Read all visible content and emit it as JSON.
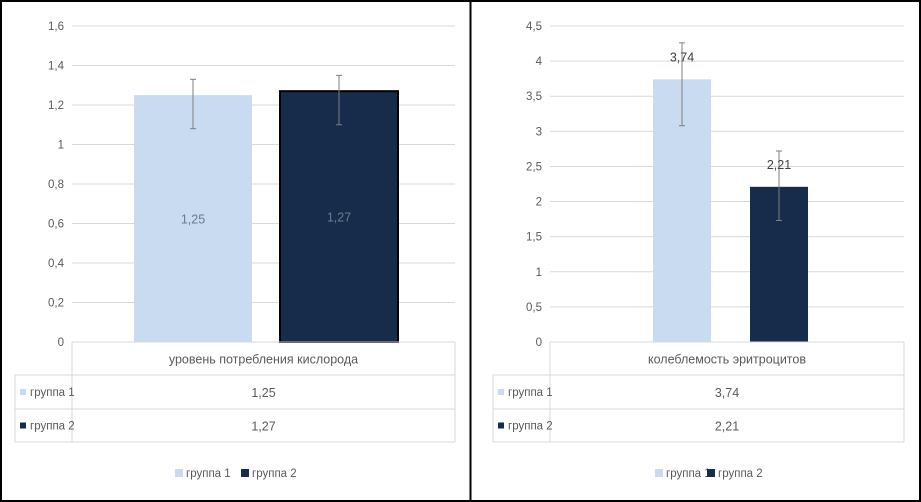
{
  "colors": {
    "group1": "#c9dbf1",
    "group2": "#172c4b",
    "grid": "#d9d9d9",
    "text": "#595959",
    "frame": "#000000"
  },
  "chart_data": [
    {
      "type": "bar",
      "categories": [
        "уровень потребления кислорода"
      ],
      "series": [
        {
          "name": "группа 1",
          "values": [
            1.25
          ],
          "error_low": [
            1.08
          ],
          "error_high": [
            1.33
          ]
        },
        {
          "name": "группа 2",
          "values": [
            1.27
          ],
          "error_low": [
            1.1
          ],
          "error_high": [
            1.35
          ]
        }
      ],
      "data_labels": [
        "1,25",
        "1,27"
      ],
      "ylim": [
        0,
        1.6
      ],
      "yticks": [
        "0",
        "0,2",
        "0,4",
        "0,6",
        "0,8",
        "1",
        "1,2",
        "1,4",
        "1,6"
      ],
      "table": {
        "header": "уровень потребления кислорода",
        "rows": [
          {
            "label": "группа 1",
            "value": "1,25"
          },
          {
            "label": "группа 2",
            "value": "1,27"
          }
        ]
      },
      "legend": [
        "группа 1",
        "группа 2"
      ],
      "legend_position": "bottom",
      "grid": true
    },
    {
      "type": "bar",
      "categories": [
        "колеблемость эритроцитов"
      ],
      "series": [
        {
          "name": "группа 1",
          "values": [
            3.74
          ],
          "error_low": [
            3.08
          ],
          "error_high": [
            4.26
          ]
        },
        {
          "name": "группа 2",
          "values": [
            2.21
          ],
          "error_low": [
            1.73
          ],
          "error_high": [
            2.72
          ]
        }
      ],
      "data_labels": [
        "3,74",
        "2,21"
      ],
      "ylim": [
        0,
        4.5
      ],
      "yticks": [
        "0",
        "0,5",
        "1",
        "1,5",
        "2",
        "2,5",
        "3",
        "3,5",
        "4",
        "4,5"
      ],
      "table": {
        "header": "колеблемость эритроцитов",
        "rows": [
          {
            "label": "группа 1",
            "value": "3,74"
          },
          {
            "label": "группа 2",
            "value": "2,21"
          }
        ]
      },
      "legend": [
        "группа 1",
        "группа 2"
      ],
      "legend_position": "bottom",
      "grid": true
    }
  ]
}
